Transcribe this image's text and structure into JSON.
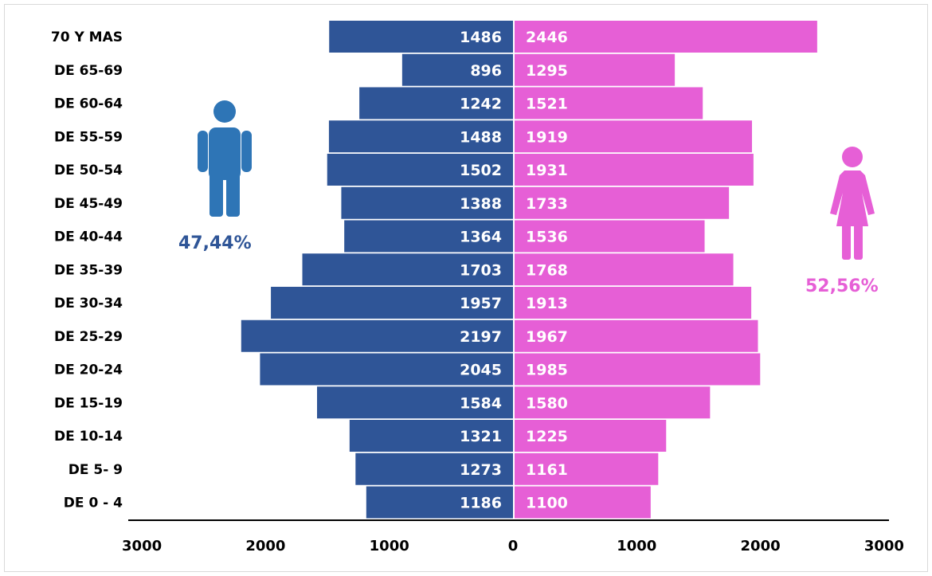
{
  "chart_data": {
    "type": "bar",
    "orientation": "horizontal",
    "subtype": "population-pyramid",
    "categories": [
      "70 Y MAS",
      "DE 65-69",
      "DE 60-64",
      "DE 55-59",
      "DE 50-54",
      "DE 45-49",
      "DE 40-44",
      "DE 35-39",
      "DE 30-34",
      "DE 25-29",
      "DE 20-24",
      "DE 15-19",
      "DE 10-14",
      "DE  5- 9",
      "DE 0 - 4"
    ],
    "series": [
      {
        "values": [
          1486,
          896,
          1242,
          1488,
          1502,
          1388,
          1364,
          1703,
          1957,
          2197,
          2045,
          1584,
          1321,
          1273,
          1186
        ],
        "color": "#2f5597",
        "side": "left"
      },
      {
        "values": [
          2446,
          1295,
          1521,
          1919,
          1931,
          1733,
          1536,
          1768,
          1913,
          1967,
          1985,
          1580,
          1225,
          1161,
          1100
        ],
        "color": "#e65fd6",
        "side": "right"
      }
    ],
    "x_ticks": [
      "3000",
      "2000",
      "1000",
      "0",
      "1000",
      "2000",
      "3000"
    ],
    "xlim": [
      -3000,
      3000
    ],
    "grid": false,
    "legend": "none"
  },
  "annotations": {
    "male_percent": "47,44%",
    "female_percent": "52,56%",
    "male_icon": "male-person-icon",
    "female_icon": "female-person-icon"
  }
}
